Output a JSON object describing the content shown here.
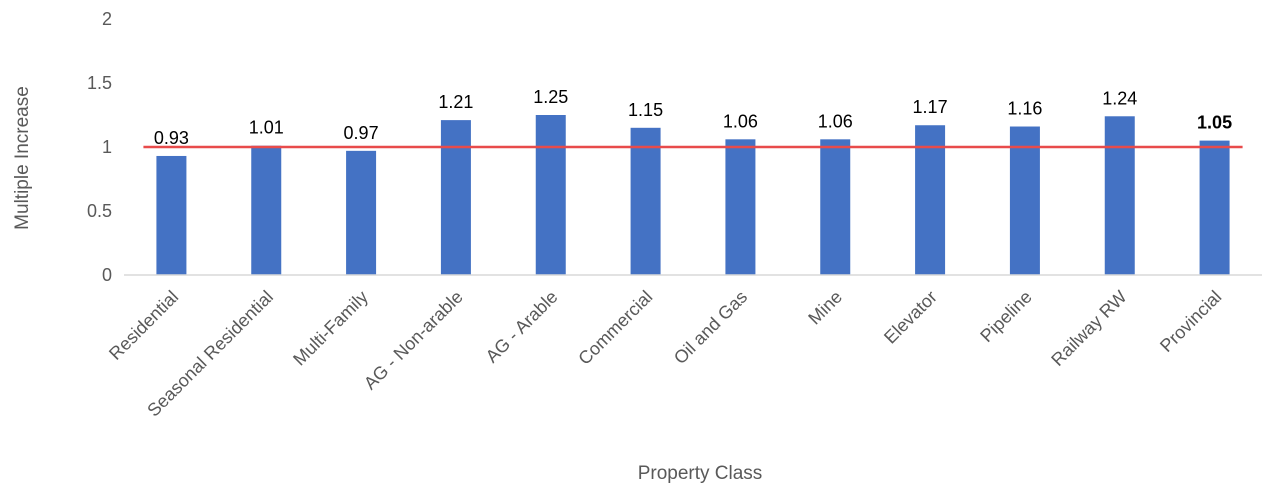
{
  "chart_data": {
    "type": "bar",
    "xlabel": "Property Class",
    "ylabel": "Multiple Increase",
    "ylim": [
      0,
      2
    ],
    "yticks": [
      0,
      0.5,
      1,
      1.5,
      2
    ],
    "ytick_labels": [
      "0",
      "0.5",
      "1",
      "1.5",
      "2"
    ],
    "grid": false,
    "categories": [
      "Residential",
      "Seasonal Residential",
      "Multi-Family",
      "AG - Non-arable",
      "AG - Arable",
      "Commercial",
      "Oil and Gas",
      "Mine",
      "Elevator",
      "Pipeline",
      "Railway RW",
      "Provincial"
    ],
    "values": [
      0.93,
      1.01,
      0.97,
      1.21,
      1.25,
      1.15,
      1.06,
      1.06,
      1.17,
      1.16,
      1.24,
      1.05
    ],
    "data_labels": [
      "0.93",
      "1.01",
      "0.97",
      "1.21",
      "1.25",
      "1.15",
      "1.06",
      "1.06",
      "1.17",
      "1.16",
      "1.24",
      "1.05"
    ],
    "bold_labels": [
      false,
      false,
      false,
      false,
      false,
      false,
      false,
      false,
      false,
      false,
      false,
      true
    ],
    "reference_line": {
      "value": 1,
      "color": "#E84B4B"
    },
    "bar_color": "#4472C4",
    "axis_color": "#D9D9D9"
  }
}
